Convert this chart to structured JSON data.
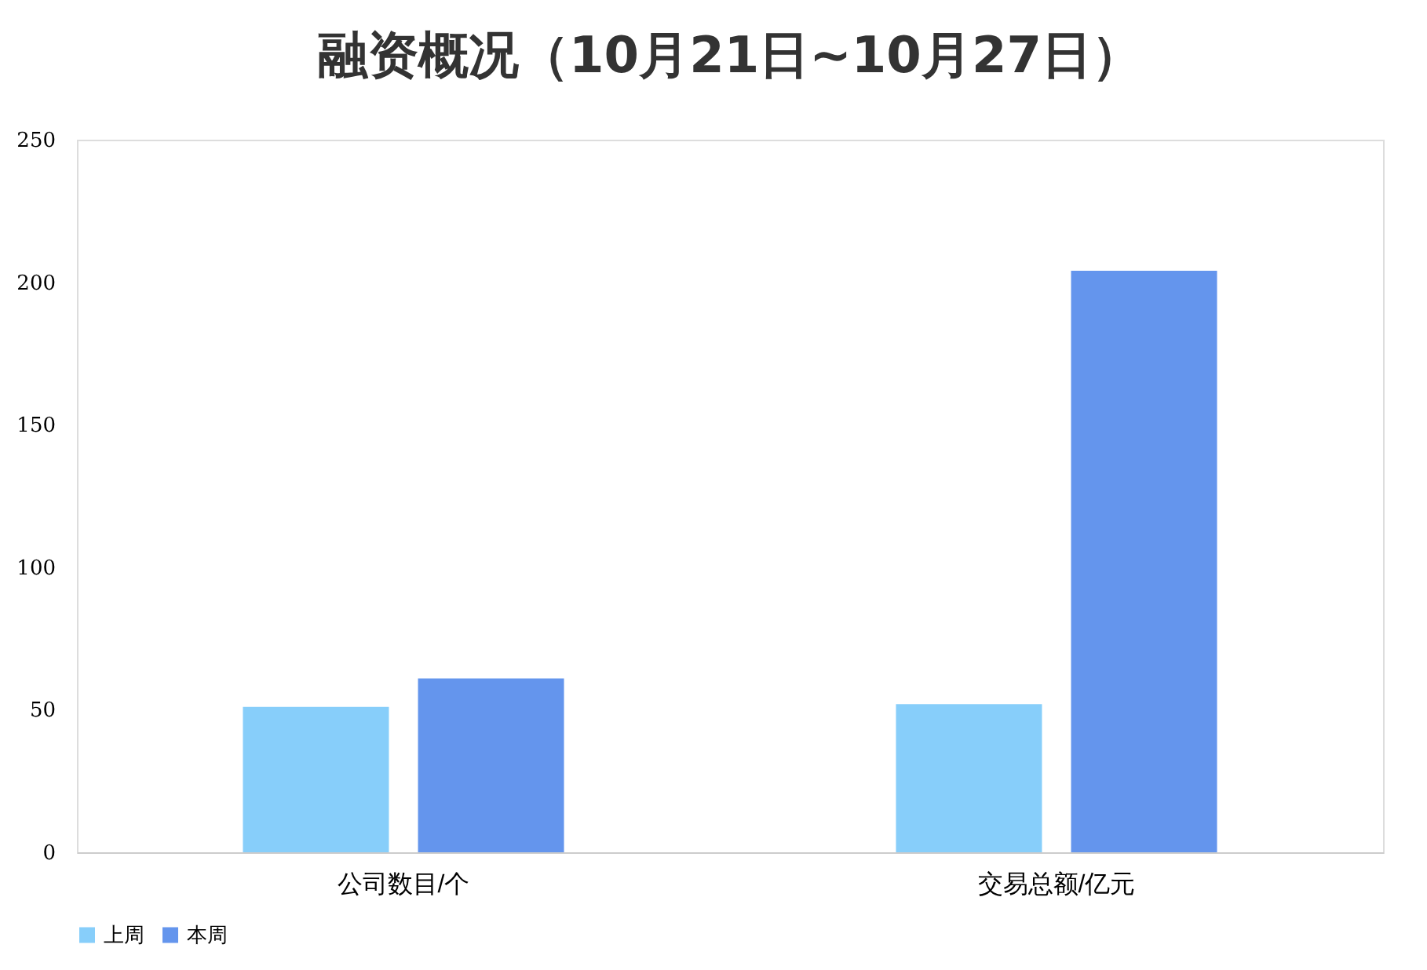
{
  "chart_data": {
    "type": "bar",
    "title": "融资概况（10月21日~10月27日）",
    "categories": [
      "公司数目/个",
      "交易总额/亿元"
    ],
    "series": [
      {
        "name": "上周",
        "color": "#87cefa",
        "values": [
          51,
          52
        ]
      },
      {
        "name": "本周",
        "color": "#6495ed",
        "values": [
          61,
          204
        ]
      }
    ],
    "ylim": [
      0,
      250
    ],
    "yticks": [
      0,
      50,
      100,
      150,
      200,
      250
    ],
    "grid": false,
    "legend": "bottom"
  }
}
